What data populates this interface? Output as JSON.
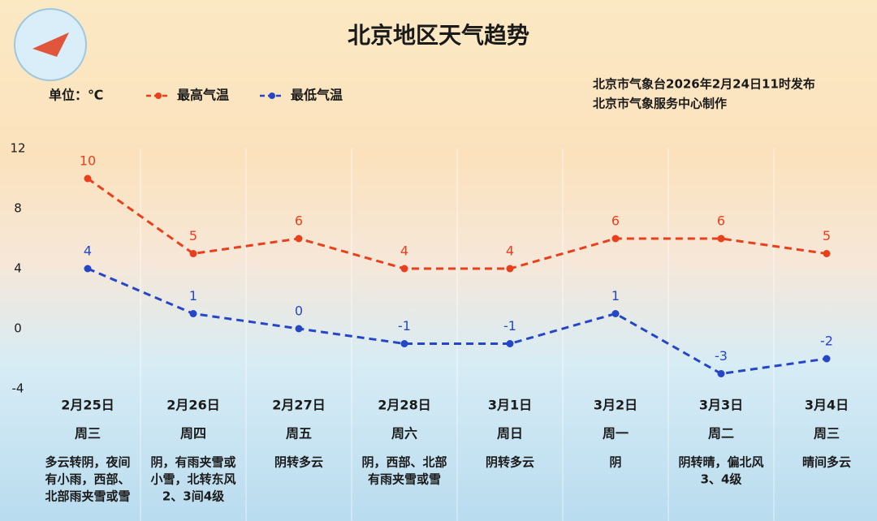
{
  "chart_data": {
    "type": "line",
    "title": "北京地区天气趋势",
    "unit_label": "单位：℃",
    "source": [
      "北京市气象台2026年2月24日11时发布",
      "北京市气象服务中心制作"
    ],
    "categories": [
      "2月25日",
      "2月26日",
      "2月27日",
      "2月28日",
      "3月1日",
      "3月2日",
      "3月3日",
      "3月4日"
    ],
    "weekdays": [
      "周三",
      "周四",
      "周五",
      "周六",
      "周日",
      "周一",
      "周二",
      "周三"
    ],
    "weather": [
      [
        "多云转阴，夜间",
        "有小雨，西部、",
        "北部雨夹雪或雪"
      ],
      [
        "阴，有雨夹雪或",
        "小雪，北转东风",
        "2、3间4级"
      ],
      [
        "阴转多云"
      ],
      [
        "阴，西部、北部",
        "有雨夹雪或雪"
      ],
      [
        "阴转多云"
      ],
      [
        "阴"
      ],
      [
        "阴转晴，偏北风",
        "3、4级"
      ],
      [
        "晴间多云"
      ]
    ],
    "series": [
      {
        "name": "最高气温",
        "color": "#e8401c",
        "values": [
          10,
          5,
          6,
          4,
          4,
          6,
          6,
          5
        ]
      },
      {
        "name": "最低气温",
        "color": "#2546c6",
        "values": [
          4,
          1,
          0,
          -1,
          -1,
          1,
          -3,
          -2
        ]
      }
    ],
    "ylim": [
      -4,
      12
    ],
    "yticks": [
      -4,
      0,
      4,
      8,
      12
    ]
  }
}
